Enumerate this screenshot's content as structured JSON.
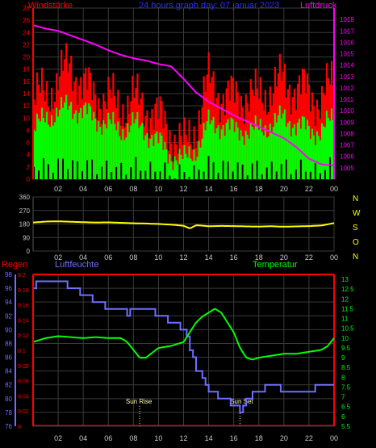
{
  "colors": {
    "background": "#000000",
    "grid": "#3a3a3a",
    "axis_tick_text": "#c8c8c8",
    "wind_gust": "#ff0000",
    "wind_avg": "#00ff00",
    "wind_low": "#c8c8c8",
    "pressure": "#ff00ff",
    "direction": "#ffff00",
    "rain": "#ff0000",
    "humidity": "#6f6fff",
    "temperature": "#00ff00",
    "title": "#3030ff",
    "yellow_labels": "#ffff00",
    "sun": "#ffffaa"
  },
  "top_panel": {
    "title": "24 hours graph day: 07 januar 2023",
    "left_label": "Windstärke",
    "right_label": "Luftdruck"
  },
  "bottom_panel": {
    "label_rain": "Regen",
    "label_humidity": "Luftfeuchte",
    "label_temperature": "Temperatur",
    "sunrise": "Sun Rise",
    "sunset": "Sun Set"
  },
  "chart_data": [
    {
      "id": "wind_pressure",
      "type": "bar",
      "title": "24 hours graph day: 07 januar 2023",
      "x_tick_labels": [
        "02",
        "04",
        "06",
        "08",
        "10",
        "12",
        "14",
        "16",
        "18",
        "20",
        "22",
        "00"
      ],
      "x_hours": [
        2,
        4,
        6,
        8,
        10,
        12,
        14,
        16,
        18,
        20,
        22,
        24
      ],
      "xlim": [
        0,
        24
      ],
      "ylabel": "Windstärke",
      "ylim": [
        0,
        28
      ],
      "y_ticks": [
        0,
        2,
        4,
        6,
        8,
        10,
        12,
        14,
        16,
        18,
        20,
        22,
        24,
        26,
        28
      ],
      "y2label": "Luftdruck",
      "y2lim": [
        1004,
        1019
      ],
      "y2_ticks": [
        1005,
        1006,
        1007,
        1008,
        1009,
        1010,
        1011,
        1012,
        1013,
        1014,
        1015,
        1016,
        1017,
        1018
      ],
      "series": [
        {
          "kind": "gust",
          "hours": [
            0,
            1,
            2,
            3,
            4,
            5,
            6,
            7,
            8,
            9,
            10,
            11,
            12,
            13,
            14,
            15,
            16,
            17,
            18,
            19,
            20,
            21,
            22,
            23,
            24
          ],
          "values": [
            13,
            14,
            16,
            19,
            15,
            14,
            13,
            12,
            13,
            12,
            10,
            8,
            5,
            9,
            16,
            14,
            13,
            14,
            13,
            15,
            16,
            15,
            14,
            13,
            16
          ]
        },
        {
          "kind": "mean",
          "hours": [
            0,
            1,
            2,
            3,
            4,
            5,
            6,
            7,
            8,
            9,
            10,
            11,
            12,
            13,
            14,
            15,
            16,
            17,
            18,
            19,
            20,
            21,
            22,
            23,
            24
          ],
          "values": [
            8,
            10,
            11,
            12,
            11,
            10,
            9,
            8,
            9,
            8,
            6,
            4,
            3,
            5,
            9,
            9,
            8,
            8,
            8,
            9,
            10,
            9,
            8,
            8,
            10
          ]
        },
        {
          "kind": "pressure",
          "hours": [
            0,
            1,
            2,
            3,
            4,
            5,
            6,
            7,
            8,
            9,
            10,
            11,
            12,
            13,
            14,
            15,
            16,
            17,
            18,
            19,
            20,
            21,
            22,
            23,
            24
          ],
          "values": [
            1017.5,
            1017.2,
            1017.0,
            1016.6,
            1016.2,
            1015.8,
            1015.3,
            1014.9,
            1014.6,
            1014.4,
            1014.1,
            1013.9,
            1012.8,
            1011.6,
            1010.8,
            1010.2,
            1009.6,
            1009.1,
            1008.6,
            1008.1,
            1007.6,
            1006.8,
            1005.8,
            1005.3,
            1005.2
          ]
        }
      ]
    },
    {
      "id": "wind_direction",
      "type": "line",
      "x_tick_labels": [
        "02",
        "04",
        "06",
        "08",
        "10",
        "12",
        "14",
        "16",
        "18",
        "20",
        "22",
        "00"
      ],
      "x_hours": [
        2,
        4,
        6,
        8,
        10,
        12,
        14,
        16,
        18,
        20,
        22,
        24
      ],
      "xlim": [
        0,
        24
      ],
      "ylim": [
        0,
        360
      ],
      "y_ticks": [
        0,
        90,
        180,
        270,
        360
      ],
      "right_labels": [
        "N",
        "W",
        "S",
        "O",
        "N"
      ],
      "series": [
        {
          "name": "direction",
          "hours": [
            0,
            1,
            2,
            3,
            4,
            5,
            6,
            7,
            8,
            9,
            10,
            11,
            12,
            12.5,
            13,
            14,
            15,
            16,
            17,
            18,
            19,
            20,
            21,
            22,
            23,
            24
          ],
          "values": [
            190,
            196,
            198,
            195,
            192,
            190,
            191,
            188,
            185,
            183,
            180,
            176,
            168,
            150,
            172,
            165,
            167,
            166,
            164,
            163,
            165,
            162,
            164,
            166,
            170,
            186
          ]
        }
      ]
    },
    {
      "id": "rain_humidity_temp",
      "type": "line",
      "x_tick_labels": [
        "02",
        "04",
        "06",
        "08",
        "10",
        "12",
        "14",
        "16",
        "18",
        "20",
        "22",
        "00"
      ],
      "x_hours": [
        2,
        4,
        6,
        8,
        10,
        12,
        14,
        16,
        18,
        20,
        22,
        24
      ],
      "xlim": [
        0,
        24
      ],
      "rain_ticks": [
        "0.2",
        "0.18",
        "0.16",
        "0.14",
        "0.12",
        "0.1",
        "0.08",
        "0.06",
        "0.04",
        "0.02",
        "0"
      ],
      "rain_lim": [
        0,
        0.2
      ],
      "humidity_ticks": [
        98,
        96,
        94,
        92,
        90,
        88,
        86,
        84,
        82,
        80,
        78,
        76
      ],
      "humidity_lim": [
        76,
        98
      ],
      "temperature_ticks": [
        "13",
        "12.5",
        "12",
        "11.5",
        "11",
        "10.5",
        "10",
        "9.5",
        "9",
        "8.5",
        "8",
        "7.5",
        "7",
        "6.5",
        "6",
        "5.5"
      ],
      "temperature_lim": [
        5.5,
        13.25
      ],
      "sunrise_hour": 8.5,
      "sunset_hour": 16.5,
      "series": [
        {
          "name": "Regen",
          "hours": [
            0,
            24
          ],
          "values": [
            0,
            0
          ]
        },
        {
          "name": "Luftfeuchte",
          "hours": [
            0,
            0.5,
            2,
            3,
            4,
            5,
            6,
            7,
            7.5,
            8,
            9,
            10,
            11,
            12,
            12.5,
            13,
            13.5,
            14,
            15,
            16,
            16.5,
            17,
            18,
            19,
            20,
            21,
            22,
            23,
            24
          ],
          "values": [
            96,
            97,
            97,
            96,
            95,
            94,
            93,
            93,
            92,
            93,
            93,
            92,
            91,
            90,
            87,
            84,
            83,
            81,
            80,
            79,
            78,
            80,
            81,
            82,
            81,
            81,
            81,
            82,
            82
          ]
        },
        {
          "name": "Temperatur",
          "hours": [
            0,
            1,
            2,
            3,
            4,
            5,
            6,
            7,
            7.5,
            8,
            8.5,
            9,
            10,
            11,
            11.5,
            12,
            12.5,
            13,
            13.5,
            14,
            14.5,
            15,
            15.5,
            16,
            16.5,
            17,
            17.5,
            18,
            19,
            20,
            21,
            22,
            23,
            23.5,
            24
          ],
          "values": [
            9.8,
            10.0,
            10.1,
            10.05,
            10.0,
            10.05,
            10.0,
            10.0,
            9.8,
            9.4,
            9.0,
            9.0,
            9.5,
            9.6,
            9.7,
            9.8,
            10.3,
            10.8,
            11.1,
            11.3,
            11.5,
            11.3,
            10.8,
            10.3,
            9.5,
            9.0,
            8.9,
            9.0,
            9.1,
            9.2,
            9.2,
            9.3,
            9.4,
            9.6,
            10.0
          ]
        }
      ]
    }
  ]
}
